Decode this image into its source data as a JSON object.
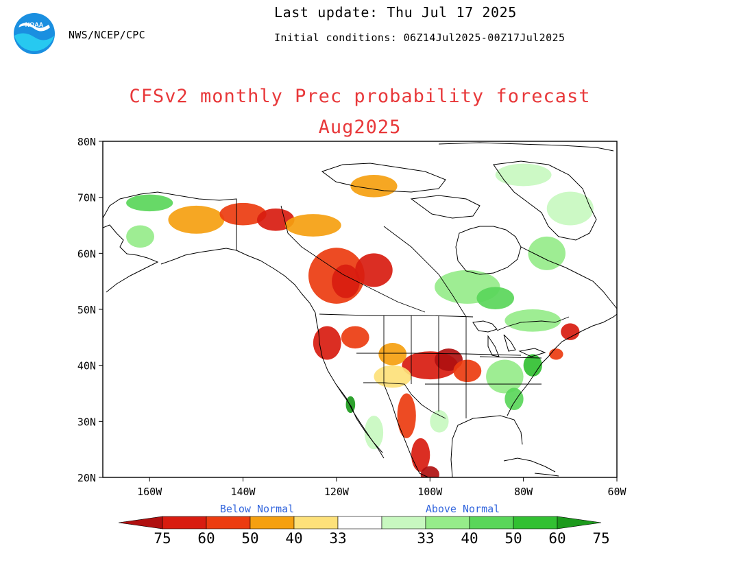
{
  "header": {
    "agency": "NWS/NCEP/CPC",
    "last_update": "Last update: Thu Jul 17 2025",
    "initial_conditions": "Initial conditions: 06Z14Jul2025-00Z17Jul2025",
    "logo_text": "NOAA"
  },
  "title": {
    "line1": "CFSv2 monthly Prec probability forecast",
    "line2": "Aug2025"
  },
  "map": {
    "lat_labels": [
      "80N",
      "70N",
      "60N",
      "50N",
      "40N",
      "30N",
      "20N"
    ],
    "lon_labels": [
      "160W",
      "140W",
      "120W",
      "100W",
      "80W",
      "60W"
    ],
    "lat_range": [
      20,
      80
    ],
    "lon_range": [
      -170,
      -60
    ],
    "colors": {
      "below_75": "#b01010",
      "below_60": "#d81c10",
      "below_50": "#ec3c10",
      "below_40": "#f5a010",
      "below_33": "#fde17a",
      "normal": "#ffffff",
      "above_33": "#c8f8c0",
      "above_40": "#96ec8a",
      "above_50": "#5ad65a",
      "above_60": "#32c032",
      "above_75": "#1c9a1c"
    }
  },
  "legend": {
    "below_label": "Below Normal",
    "above_label": "Above Normal",
    "bins": [
      "75",
      "60",
      "50",
      "40",
      "33",
      "33",
      "40",
      "50",
      "60",
      "75"
    ]
  }
}
